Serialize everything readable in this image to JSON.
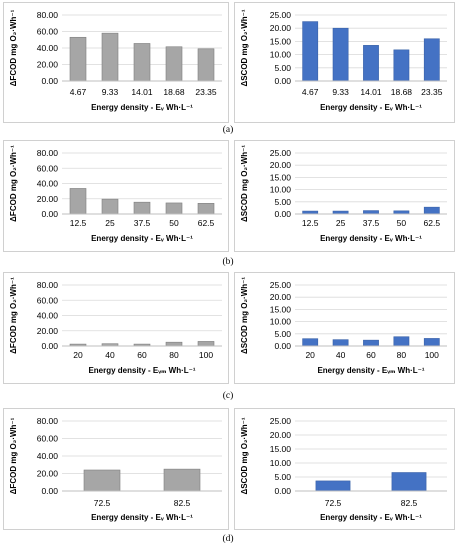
{
  "chart_data": [
    {
      "type": "bar",
      "panel": "a",
      "side": "left",
      "ylabel": "ΔFCOD mg O₂·Wh⁻¹",
      "xlabel": "Energy density - Eᵥ Wh·L⁻¹",
      "ylim": [
        0,
        80
      ],
      "yticks": [
        "0.00",
        "20.00",
        "40.00",
        "60.00",
        "80.00"
      ],
      "categories": [
        "4.67",
        "9.33",
        "14.01",
        "18.68",
        "23.35"
      ],
      "values": [
        53,
        58,
        45.5,
        41.5,
        39
      ],
      "color": "#a6a6a6"
    },
    {
      "type": "bar",
      "panel": "a",
      "side": "right",
      "ylabel": "ΔSCOD mg O₂·Wh⁻¹",
      "xlabel": "Energy density - Eᵥ Wh·L⁻¹",
      "ylim": [
        0,
        25
      ],
      "yticks": [
        "0.00",
        "5.00",
        "10.00",
        "15.00",
        "20.00",
        "25.00"
      ],
      "categories": [
        "4.67",
        "9.33",
        "14.01",
        "18.68",
        "23.35"
      ],
      "values": [
        22.5,
        20,
        13.5,
        11.8,
        16
      ],
      "color": "#4472c4"
    },
    {
      "type": "bar",
      "panel": "b",
      "side": "left",
      "ylabel": "ΔFCOD mg O₂·Wh⁻¹",
      "xlabel": "Energy density - Eᵥ Wh·L⁻¹",
      "ylim": [
        0,
        80
      ],
      "yticks": [
        "0.00",
        "20.00",
        "40.00",
        "60.00",
        "80.00"
      ],
      "categories": [
        "12.5",
        "25",
        "37.5",
        "50",
        "62.5"
      ],
      "values": [
        33.5,
        19.5,
        15.5,
        14.5,
        14
      ],
      "color": "#a6a6a6"
    },
    {
      "type": "bar",
      "panel": "b",
      "side": "right",
      "ylabel": "ΔSCOD mg O₂·Wh⁻¹",
      "xlabel": "Energy density - Eᵥ Wh·L⁻¹",
      "ylim": [
        0,
        25
      ],
      "yticks": [
        "0.00",
        "5.00",
        "10.00",
        "15.00",
        "20.00",
        "25.00"
      ],
      "categories": [
        "12.5",
        "25",
        "37.5",
        "50",
        "62.5"
      ],
      "values": [
        1.2,
        1.2,
        1.4,
        1.3,
        2.8
      ],
      "color": "#4472c4"
    },
    {
      "type": "bar",
      "panel": "c",
      "side": "left",
      "ylabel": "ΔFCOD mg O₂·Wh⁻¹",
      "xlabel": "Energy density - Eᵥₘ Wh·L⁻¹",
      "ylim": [
        0,
        80
      ],
      "yticks": [
        "0.00",
        "20.00",
        "40.00",
        "60.00",
        "80.00"
      ],
      "categories": [
        "20",
        "40",
        "60",
        "80",
        "100"
      ],
      "values": [
        2.5,
        3,
        2.5,
        5,
        6
      ],
      "color": "#a6a6a6"
    },
    {
      "type": "bar",
      "panel": "c",
      "side": "right",
      "ylabel": "ΔSCOD mg O₂·Wh⁻¹",
      "xlabel": "Energy density - Eᵥₘ Wh·L⁻¹",
      "ylim": [
        0,
        25
      ],
      "yticks": [
        "0.00",
        "5.00",
        "10.00",
        "15.00",
        "20.00",
        "25.00"
      ],
      "categories": [
        "20",
        "40",
        "60",
        "80",
        "100"
      ],
      "values": [
        3,
        2.6,
        2.4,
        3.8,
        3.1
      ],
      "color": "#4472c4"
    },
    {
      "type": "bar",
      "panel": "d",
      "side": "left",
      "ylabel": "ΔFCOD mg O₂·Wh⁻¹",
      "xlabel": "Energy density - Eᵥ Wh·L⁻¹",
      "ylim": [
        0,
        80
      ],
      "yticks": [
        "0.00",
        "20.00",
        "40.00",
        "60.00",
        "80.00"
      ],
      "categories": [
        "72.5",
        "82.5"
      ],
      "values": [
        24,
        25
      ],
      "color": "#a6a6a6"
    },
    {
      "type": "bar",
      "panel": "d",
      "side": "right",
      "ylabel": "ΔSCOD mg O₂·Wh⁻¹",
      "xlabel": "Energy density - Eᵥ Wh·L⁻¹",
      "ylim": [
        0,
        25
      ],
      "yticks": [
        "0.00",
        "5.00",
        "10.00",
        "15.00",
        "20.00",
        "25.00"
      ],
      "categories": [
        "72.5",
        "82.5"
      ],
      "values": [
        3.6,
        6.6
      ],
      "color": "#4472c4"
    }
  ],
  "captions": [
    "(a)",
    "(b)",
    "(c)",
    "(d)"
  ]
}
